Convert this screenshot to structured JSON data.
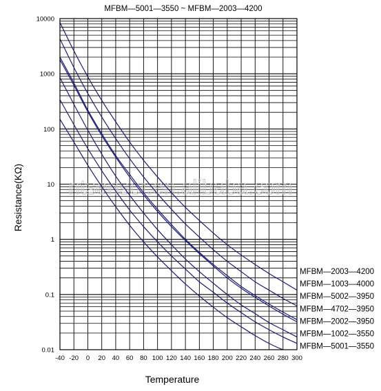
{
  "chart_data": {
    "type": "line",
    "title": "MFBM—5001—3550 ~ MFBM—2003—4200",
    "xlabel": "Temperature",
    "ylabel": "Resistance(KΩ)",
    "x_ticks": [
      "-40",
      "-20",
      "0",
      "20",
      "40",
      "60",
      "80",
      "100",
      "120",
      "140",
      "160",
      "180",
      "200",
      "220",
      "240",
      "260",
      "280",
      "300"
    ],
    "y_ticks": [
      "10000",
      "1000",
      "100",
      "10",
      "1",
      "0.1",
      "0.01"
    ],
    "xlim": [
      -40,
      300
    ],
    "ylim": [
      0.01,
      10000
    ],
    "y_scale": "log",
    "grid": true,
    "legend_position": "right",
    "line_color": "#1a1a7a",
    "watermark": "ntsensor.en.alibaba.com",
    "x": [
      -40,
      -20,
      0,
      20,
      40,
      60,
      80,
      100,
      120,
      140,
      160,
      180,
      200,
      220,
      240,
      260,
      280,
      300
    ],
    "series": [
      {
        "name": "MFBM—2003—4200",
        "values": [
          8500,
          2600,
          880,
          330,
          135,
          58,
          27,
          13.5,
          7,
          3.8,
          2.2,
          1.3,
          0.8,
          0.52,
          0.35,
          0.24,
          0.17,
          0.12
        ]
      },
      {
        "name": "MFBM—1003—4000",
        "values": [
          4300,
          1300,
          440,
          165,
          67,
          29,
          13.5,
          6.7,
          3.5,
          1.9,
          1.1,
          0.65,
          0.4,
          0.26,
          0.17,
          0.12,
          0.085,
          0.062
        ]
      },
      {
        "name": "MFBM—5002—3950",
        "values": [
          2000,
          680,
          220,
          82,
          33,
          15,
          7,
          3.5,
          1.85,
          1.0,
          0.58,
          0.35,
          0.22,
          0.14,
          0.096,
          0.067,
          0.048,
          0.035
        ]
      },
      {
        "name": "MFBM—4702—3950",
        "values": [
          1800,
          620,
          205,
          76,
          31,
          13.5,
          6.4,
          3.2,
          1.7,
          0.95,
          0.55,
          0.33,
          0.2,
          0.13,
          0.089,
          0.062,
          0.044,
          0.032
        ]
      },
      {
        "name": "MFBM—2002—3950",
        "values": [
          850,
          280,
          95,
          35,
          14,
          6.3,
          3.0,
          1.5,
          0.8,
          0.44,
          0.26,
          0.16,
          0.1,
          0.065,
          0.045,
          0.031,
          0.023,
          0.017
        ]
      },
      {
        "name": "MFBM—1002—3550",
        "values": [
          340,
          120,
          44,
          17.5,
          7.5,
          3.4,
          1.7,
          0.9,
          0.5,
          0.29,
          0.17,
          0.11,
          0.07,
          0.047,
          0.032,
          0.023,
          0.017,
          0.013
        ]
      },
      {
        "name": "MFBM—5001—3550",
        "values": [
          150,
          58,
          22,
          9,
          3.9,
          1.8,
          0.9,
          0.48,
          0.27,
          0.155,
          0.094,
          0.059,
          0.038,
          0.026,
          0.018,
          0.013,
          0.01,
          0.0085
        ]
      }
    ]
  }
}
